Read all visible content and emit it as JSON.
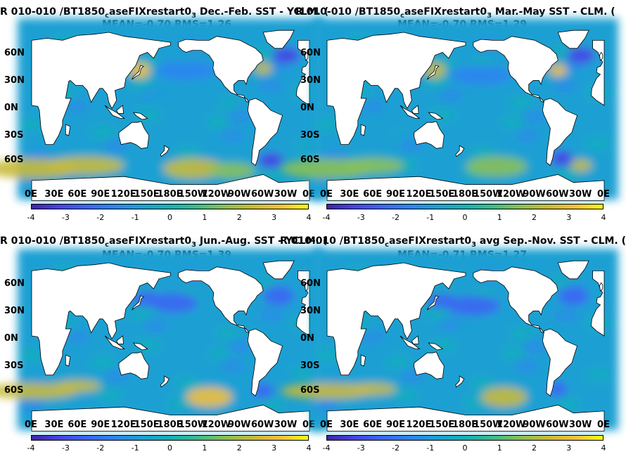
{
  "panels": [
    {
      "title_pre": "R 010-010 /BT1850",
      "title_sub1": "c",
      "title_mid": "aseFIXrestart0",
      "title_sub2": "3",
      "title_post": "  Dec.-Feb. SST - YCLM. (",
      "stats": "MEAN=-0.70   RMS=1.26"
    },
    {
      "title_pre": "R 010-010 /BT1850",
      "title_sub1": "c",
      "title_mid": "aseFIXrestart0",
      "title_sub2": "3",
      "title_post": " Mar.-May SST - CLM. (",
      "stats": "MEAN=-0.70   RMS=1.29"
    },
    {
      "title_pre": "R 010-010 /BT1850",
      "title_sub1": "c",
      "title_mid": "aseFIXrestart0",
      "title_sub2": "3",
      "title_post": " Jun.-Aug. SST - YCLM. (",
      "stats": "MEAN=-0.70   RMS=1.39"
    },
    {
      "title_pre": "R 010-010 /BT1850",
      "title_sub1": "c",
      "title_mid": "aseFIXrestart0",
      "title_sub2": "3",
      "title_post": " avg Sep.-Nov. SST - CLM. (",
      "stats": "MEAN=-0.71   RMS=1.27"
    }
  ],
  "lat_labels": [
    "60N",
    "30N",
    "0N",
    "30S",
    "60S"
  ],
  "lon_labels": [
    "0E",
    "30E",
    "60E",
    "90E",
    "120E",
    "150E",
    "180E",
    "150W",
    "120W",
    "90W",
    "60W",
    "30W",
    "0E"
  ],
  "colorbar_ticks": [
    "-4",
    "-3",
    "-2",
    "-1",
    "0",
    "1",
    "2",
    "3",
    "4"
  ],
  "colors": {
    "ocean_base": "#2fb5a7",
    "land": "#ffffff",
    "colormap": [
      "#3e26a8",
      "#4743e5",
      "#3c66f3",
      "#2d85ef",
      "#1ba0d3",
      "#14b2b5",
      "#3cbc8a",
      "#89c055",
      "#c8ba36",
      "#f2c03a",
      "#f9fb0e"
    ]
  }
}
